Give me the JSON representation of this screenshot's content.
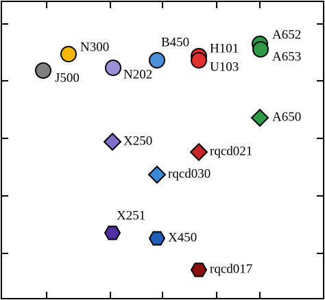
{
  "chart_data": {
    "type": "scatter",
    "xlim": [
      0,
      4.74
    ],
    "ylim": [
      0,
      4.38
    ],
    "xticks": [
      0.68,
      1.61,
      2.37,
      3.16,
      3.79
    ],
    "yticks": [
      4.03,
      3.2,
      2.36,
      1.52,
      0.68
    ],
    "points": [
      {
        "label": "J500",
        "x": 0.63,
        "y": 3.35,
        "color": "#808080",
        "marker": "circle"
      },
      {
        "label": "N300",
        "x": 1.0,
        "y": 3.59,
        "color": "#f5b800",
        "marker": "circle"
      },
      {
        "label": "N202",
        "x": 1.65,
        "y": 3.39,
        "color": "#9c8fd6",
        "marker": "circle"
      },
      {
        "label": "B450",
        "x": 2.29,
        "y": 3.5,
        "color": "#4a90d9",
        "marker": "circle"
      },
      {
        "label": "H101",
        "x": 2.9,
        "y": 3.56,
        "color": "#e03030",
        "marker": "circle"
      },
      {
        "label": "U103",
        "x": 2.9,
        "y": 3.5,
        "color": "#e03030",
        "marker": "circle"
      },
      {
        "label": "A652",
        "x": 3.79,
        "y": 3.74,
        "color": "#2e9a48",
        "marker": "circle"
      },
      {
        "label": "A653",
        "x": 3.8,
        "y": 3.66,
        "color": "#2e9a48",
        "marker": "circle"
      },
      {
        "label": "A650",
        "x": 3.79,
        "y": 2.66,
        "color": "#2e9a48",
        "marker": "diamond"
      },
      {
        "label": "X250",
        "x": 1.64,
        "y": 2.31,
        "color": "#8070c8",
        "marker": "diamond"
      },
      {
        "label": "rqcd021",
        "x": 2.9,
        "y": 2.16,
        "color": "#c82828",
        "marker": "diamond"
      },
      {
        "label": "rqcd030",
        "x": 2.29,
        "y": 1.83,
        "color": "#3a88d8",
        "marker": "diamond"
      },
      {
        "label": "X251",
        "x": 1.64,
        "y": 0.98,
        "color": "#5030a0",
        "marker": "hexagon"
      },
      {
        "label": "X450",
        "x": 2.29,
        "y": 0.9,
        "color": "#1f5fb8",
        "marker": "hexagon"
      },
      {
        "label": "rqcd017",
        "x": 2.9,
        "y": 0.44,
        "color": "#8a1010",
        "marker": "hexagon"
      }
    ]
  }
}
